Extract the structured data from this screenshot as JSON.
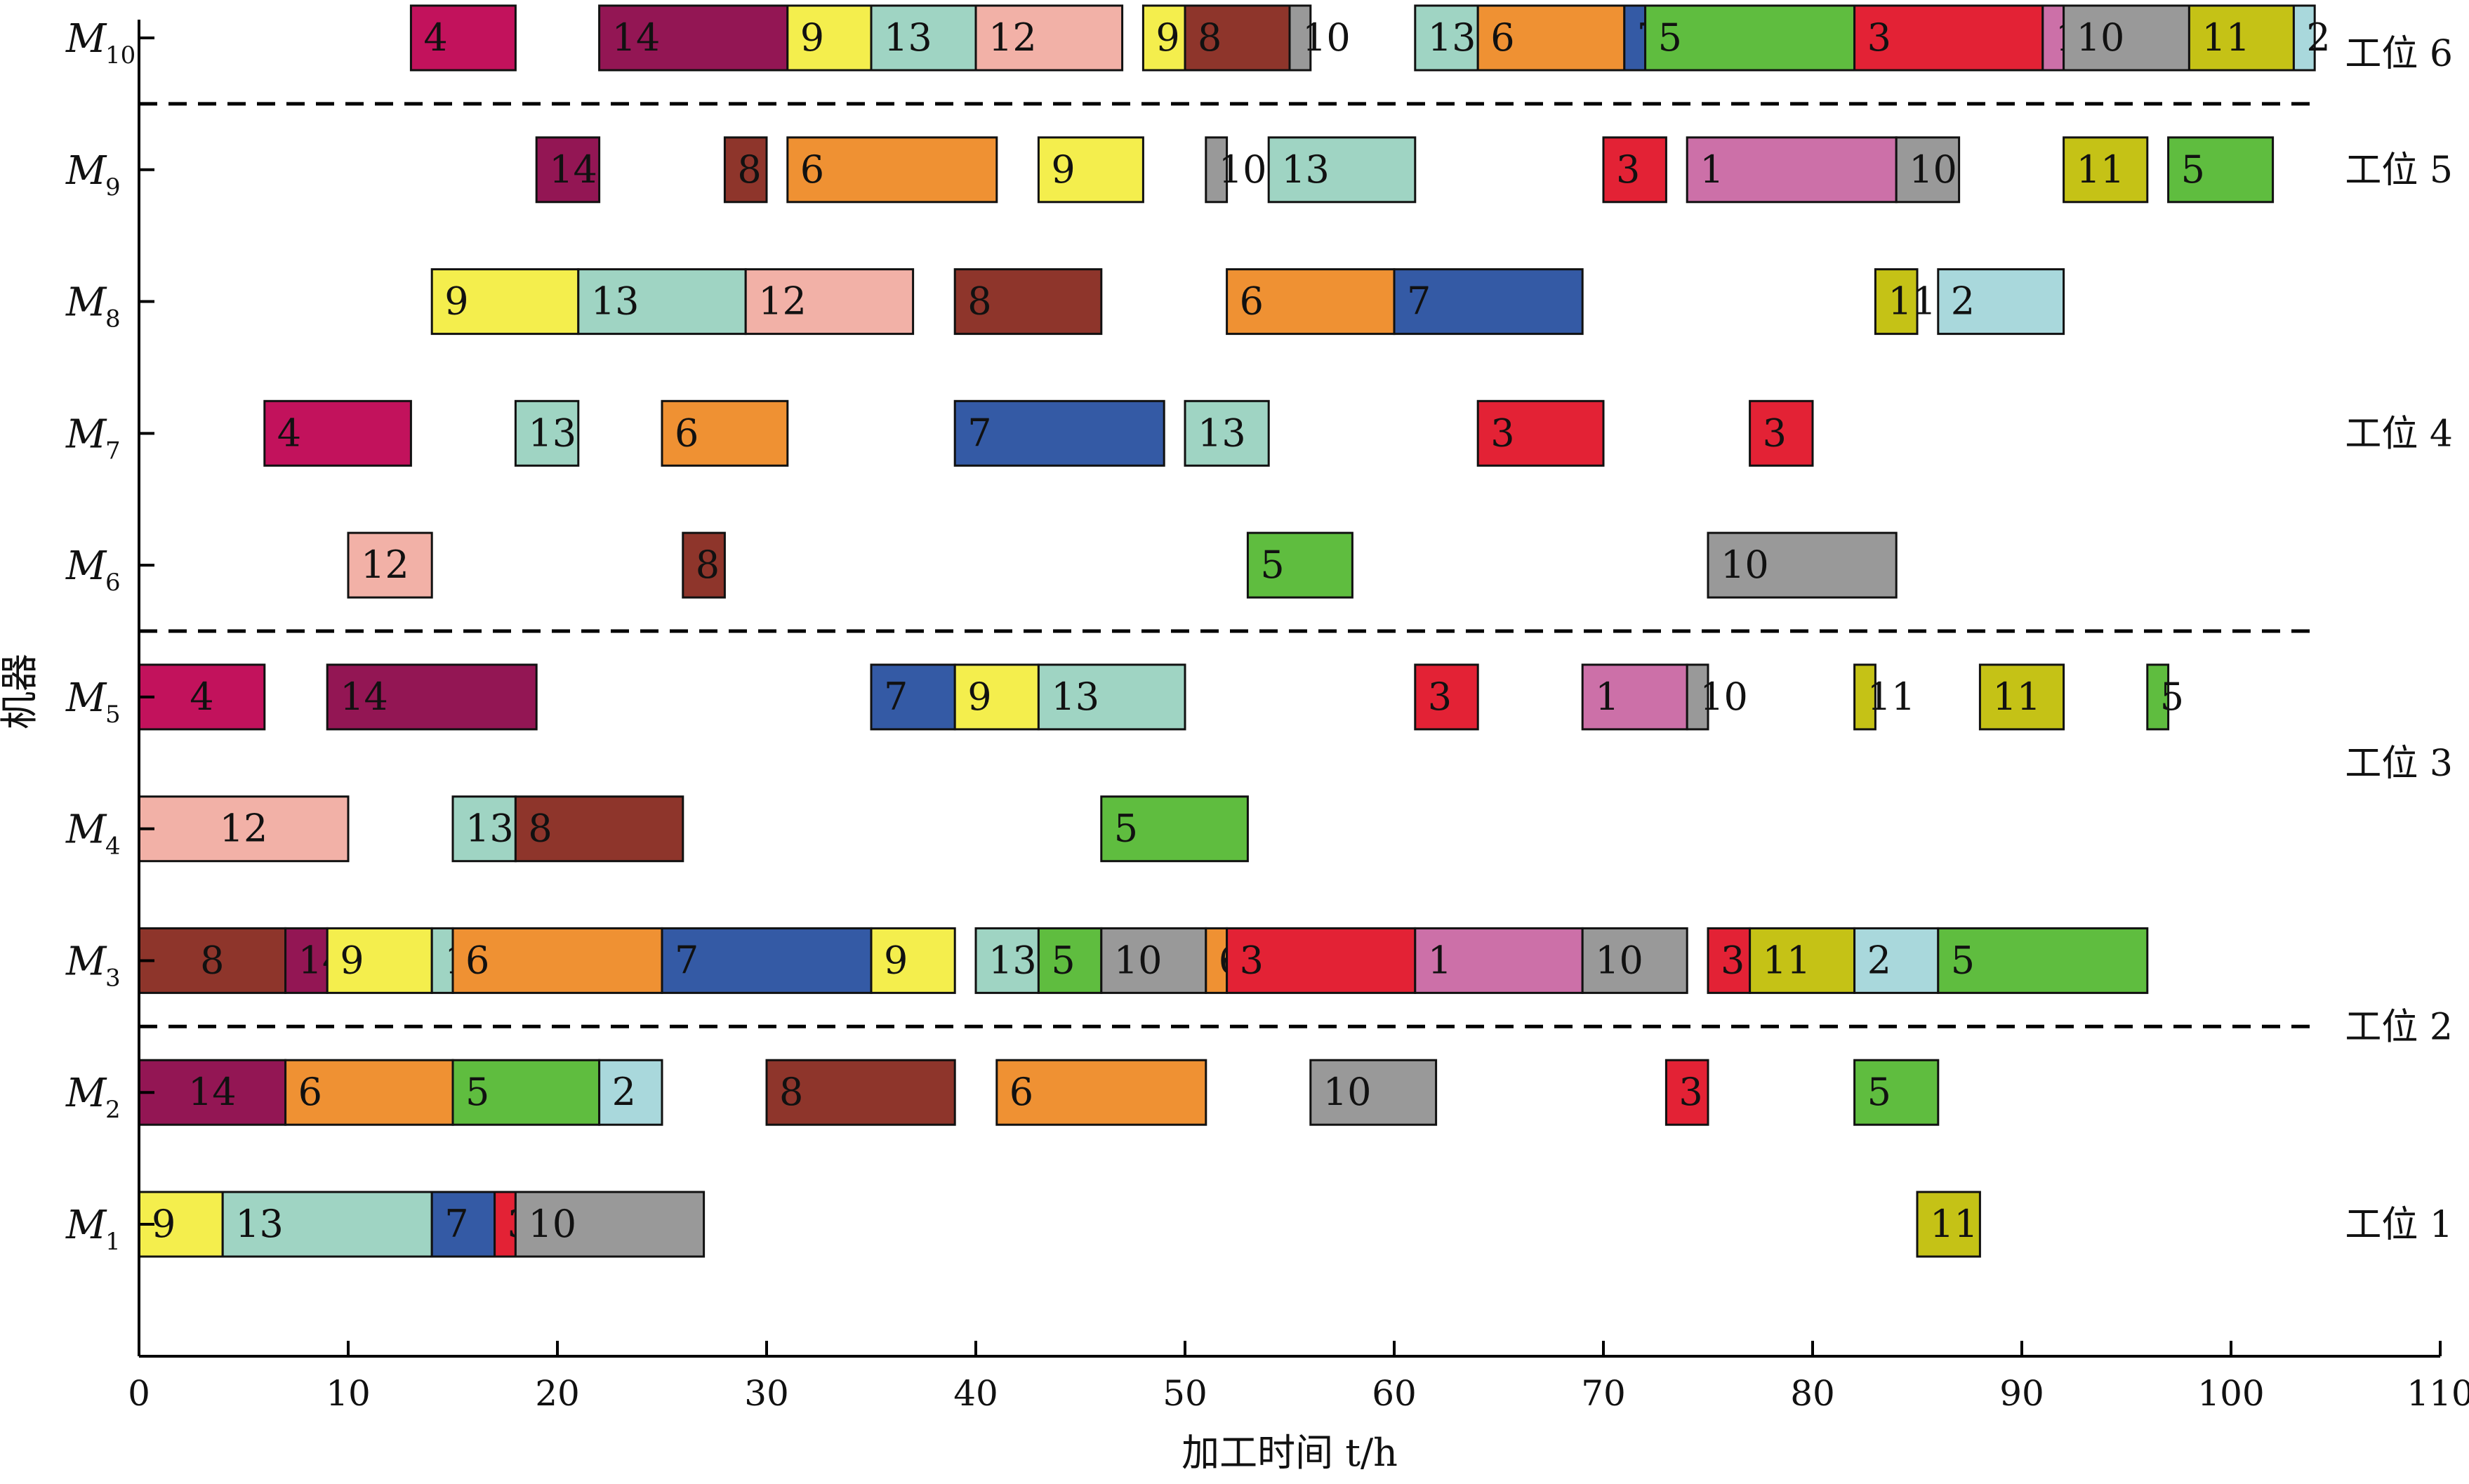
{
  "chart_data": {
    "type": "gantt",
    "title": "",
    "xlabel": "加工时间 t/h",
    "ylabel": "机器",
    "xlim": [
      0,
      110
    ],
    "xticks": [
      0,
      10,
      20,
      30,
      40,
      50,
      60,
      70,
      80,
      90,
      100,
      110
    ],
    "machines": [
      {
        "id": "M1",
        "base": "M",
        "sub": "1"
      },
      {
        "id": "M2",
        "base": "M",
        "sub": "2"
      },
      {
        "id": "M3",
        "base": "M",
        "sub": "3"
      },
      {
        "id": "M4",
        "base": "M",
        "sub": "4"
      },
      {
        "id": "M5",
        "base": "M",
        "sub": "5"
      },
      {
        "id": "M6",
        "base": "M",
        "sub": "6"
      },
      {
        "id": "M7",
        "base": "M",
        "sub": "7"
      },
      {
        "id": "M8",
        "base": "M",
        "sub": "8"
      },
      {
        "id": "M9",
        "base": "M",
        "sub": "9"
      },
      {
        "id": "M10",
        "base": "M",
        "sub": "10"
      }
    ],
    "stations": [
      {
        "label": "工位 1",
        "machines": [
          "M1"
        ]
      },
      {
        "label": "工位 2",
        "machines": [
          "M2",
          "M3"
        ]
      },
      {
        "label": "工位 3",
        "machines": [
          "M4",
          "M5"
        ]
      },
      {
        "label": "工位 4",
        "machines": [
          "M6",
          "M7",
          "M8"
        ]
      },
      {
        "label": "工位 5",
        "machines": [
          "M9"
        ]
      },
      {
        "label": "工位 6",
        "machines": [
          "M10"
        ]
      }
    ],
    "station_dividers_after": [
      "M2",
      "M5",
      "M9"
    ],
    "job_colors": {
      "1": "#cc70a8",
      "2": "#a9d8dc",
      "3": "#e32235",
      "4": "#c2125c",
      "5": "#5fbd3f",
      "6": "#ef9133",
      "7": "#345aa5",
      "8": "#8e352b",
      "9": "#f4ee4d",
      "10": "#999999",
      "11": "#c5c216",
      "12": "#f2b1a7",
      "13": "#9fd4c3",
      "14": "#931654"
    },
    "tasks": [
      {
        "machine": "M1",
        "job": "9",
        "start": 0,
        "end": 4
      },
      {
        "machine": "M1",
        "job": "13",
        "start": 4,
        "end": 14
      },
      {
        "machine": "M1",
        "job": "7",
        "start": 14,
        "end": 17
      },
      {
        "machine": "M1",
        "job": "3",
        "start": 17,
        "end": 18
      },
      {
        "machine": "M1",
        "job": "10",
        "start": 18,
        "end": 27
      },
      {
        "machine": "M1",
        "job": "11",
        "start": 85,
        "end": 88
      },
      {
        "machine": "M2",
        "job": "14",
        "start": 0,
        "end": 7
      },
      {
        "machine": "M2",
        "job": "6",
        "start": 7,
        "end": 15
      },
      {
        "machine": "M2",
        "job": "5",
        "start": 15,
        "end": 22
      },
      {
        "machine": "M2",
        "job": "2",
        "start": 22,
        "end": 25
      },
      {
        "machine": "M2",
        "job": "8",
        "start": 30,
        "end": 39
      },
      {
        "machine": "M2",
        "job": "6",
        "start": 41,
        "end": 51
      },
      {
        "machine": "M2",
        "job": "10",
        "start": 56,
        "end": 62
      },
      {
        "machine": "M2",
        "job": "3",
        "start": 73,
        "end": 75
      },
      {
        "machine": "M2",
        "job": "5",
        "start": 82,
        "end": 86
      },
      {
        "machine": "M3",
        "job": "8",
        "start": 0,
        "end": 7
      },
      {
        "machine": "M3",
        "job": "14",
        "start": 7,
        "end": 9
      },
      {
        "machine": "M3",
        "job": "9",
        "start": 9,
        "end": 14
      },
      {
        "machine": "M3",
        "job": "13",
        "start": 14,
        "end": 15
      },
      {
        "machine": "M3",
        "job": "6",
        "start": 15,
        "end": 25
      },
      {
        "machine": "M3",
        "job": "7",
        "start": 25,
        "end": 35
      },
      {
        "machine": "M3",
        "job": "9",
        "start": 35,
        "end": 39
      },
      {
        "machine": "M3",
        "job": "13",
        "start": 40,
        "end": 43
      },
      {
        "machine": "M3",
        "job": "5",
        "start": 43,
        "end": 46
      },
      {
        "machine": "M3",
        "job": "10",
        "start": 46,
        "end": 51
      },
      {
        "machine": "M3",
        "job": "6",
        "start": 51,
        "end": 52
      },
      {
        "machine": "M3",
        "job": "3",
        "start": 52,
        "end": 61
      },
      {
        "machine": "M3",
        "job": "1",
        "start": 61,
        "end": 69
      },
      {
        "machine": "M3",
        "job": "10",
        "start": 69,
        "end": 74
      },
      {
        "machine": "M3",
        "job": "3",
        "start": 75,
        "end": 77
      },
      {
        "machine": "M3",
        "job": "11",
        "start": 77,
        "end": 82
      },
      {
        "machine": "M3",
        "job": "2",
        "start": 82,
        "end": 86
      },
      {
        "machine": "M3",
        "job": "5",
        "start": 86,
        "end": 96
      },
      {
        "machine": "M4",
        "job": "12",
        "start": 0,
        "end": 10
      },
      {
        "machine": "M4",
        "job": "13",
        "start": 15,
        "end": 18
      },
      {
        "machine": "M4",
        "job": "8",
        "start": 18,
        "end": 26
      },
      {
        "machine": "M4",
        "job": "5",
        "start": 46,
        "end": 53
      },
      {
        "machine": "M5",
        "job": "4",
        "start": 0,
        "end": 6
      },
      {
        "machine": "M5",
        "job": "14",
        "start": 9,
        "end": 19
      },
      {
        "machine": "M5",
        "job": "7",
        "start": 35,
        "end": 39
      },
      {
        "machine": "M5",
        "job": "9",
        "start": 39,
        "end": 43
      },
      {
        "machine": "M5",
        "job": "13",
        "start": 43,
        "end": 50
      },
      {
        "machine": "M5",
        "job": "3",
        "start": 61,
        "end": 64
      },
      {
        "machine": "M5",
        "job": "1",
        "start": 69,
        "end": 74
      },
      {
        "machine": "M5",
        "job": "10",
        "start": 74,
        "end": 75
      },
      {
        "machine": "M5",
        "job": "11",
        "start": 82,
        "end": 83
      },
      {
        "machine": "M5",
        "job": "11",
        "start": 88,
        "end": 92
      },
      {
        "machine": "M5",
        "job": "5",
        "start": 96,
        "end": 97
      },
      {
        "machine": "M6",
        "job": "12",
        "start": 10,
        "end": 14
      },
      {
        "machine": "M6",
        "job": "8",
        "start": 26,
        "end": 28
      },
      {
        "machine": "M6",
        "job": "5",
        "start": 53,
        "end": 58
      },
      {
        "machine": "M6",
        "job": "10",
        "start": 75,
        "end": 84
      },
      {
        "machine": "M7",
        "job": "4",
        "start": 6,
        "end": 13
      },
      {
        "machine": "M7",
        "job": "13",
        "start": 18,
        "end": 21
      },
      {
        "machine": "M7",
        "job": "6",
        "start": 25,
        "end": 31
      },
      {
        "machine": "M7",
        "job": "7",
        "start": 39,
        "end": 49
      },
      {
        "machine": "M7",
        "job": "13",
        "start": 50,
        "end": 54
      },
      {
        "machine": "M7",
        "job": "3",
        "start": 64,
        "end": 70
      },
      {
        "machine": "M7",
        "job": "3",
        "start": 77,
        "end": 80
      },
      {
        "machine": "M8",
        "job": "9",
        "start": 14,
        "end": 21
      },
      {
        "machine": "M8",
        "job": "13",
        "start": 21,
        "end": 29
      },
      {
        "machine": "M8",
        "job": "12",
        "start": 29,
        "end": 37
      },
      {
        "machine": "M8",
        "job": "8",
        "start": 39,
        "end": 46
      },
      {
        "machine": "M8",
        "job": "6",
        "start": 52,
        "end": 60
      },
      {
        "machine": "M8",
        "job": "7",
        "start": 60,
        "end": 69
      },
      {
        "machine": "M8",
        "job": "11",
        "start": 83,
        "end": 85
      },
      {
        "machine": "M8",
        "job": "2",
        "start": 86,
        "end": 92
      },
      {
        "machine": "M9",
        "job": "14",
        "start": 19,
        "end": 22
      },
      {
        "machine": "M9",
        "job": "8",
        "start": 28,
        "end": 30
      },
      {
        "machine": "M9",
        "job": "6",
        "start": 31,
        "end": 41
      },
      {
        "machine": "M9",
        "job": "9",
        "start": 43,
        "end": 48
      },
      {
        "machine": "M9",
        "job": "10",
        "start": 51,
        "end": 52
      },
      {
        "machine": "M9",
        "job": "13",
        "start": 54,
        "end": 61
      },
      {
        "machine": "M9",
        "job": "3",
        "start": 70,
        "end": 73
      },
      {
        "machine": "M9",
        "job": "1",
        "start": 74,
        "end": 84
      },
      {
        "machine": "M9",
        "job": "10",
        "start": 84,
        "end": 87
      },
      {
        "machine": "M9",
        "job": "11",
        "start": 92,
        "end": 96
      },
      {
        "machine": "M9",
        "job": "5",
        "start": 97,
        "end": 102
      },
      {
        "machine": "M10",
        "job": "4",
        "start": 13,
        "end": 18
      },
      {
        "machine": "M10",
        "job": "14",
        "start": 22,
        "end": 31
      },
      {
        "machine": "M10",
        "job": "9",
        "start": 31,
        "end": 35
      },
      {
        "machine": "M10",
        "job": "13",
        "start": 35,
        "end": 40
      },
      {
        "machine": "M10",
        "job": "12",
        "start": 40,
        "end": 47
      },
      {
        "machine": "M10",
        "job": "9",
        "start": 48,
        "end": 50
      },
      {
        "machine": "M10",
        "job": "8",
        "start": 50,
        "end": 55
      },
      {
        "machine": "M10",
        "job": "10",
        "start": 55,
        "end": 56
      },
      {
        "machine": "M10",
        "job": "13",
        "start": 61,
        "end": 64
      },
      {
        "machine": "M10",
        "job": "6",
        "start": 64,
        "end": 71
      },
      {
        "machine": "M10",
        "job": "7",
        "start": 71,
        "end": 72
      },
      {
        "machine": "M10",
        "job": "5",
        "start": 72,
        "end": 82
      },
      {
        "machine": "M10",
        "job": "3",
        "start": 82,
        "end": 91
      },
      {
        "machine": "M10",
        "job": "1",
        "start": 91,
        "end": 92
      },
      {
        "machine": "M10",
        "job": "10",
        "start": 92,
        "end": 98
      },
      {
        "machine": "M10",
        "job": "11",
        "start": 98,
        "end": 103
      },
      {
        "machine": "M10",
        "job": "2",
        "start": 103,
        "end": 104
      }
    ]
  }
}
